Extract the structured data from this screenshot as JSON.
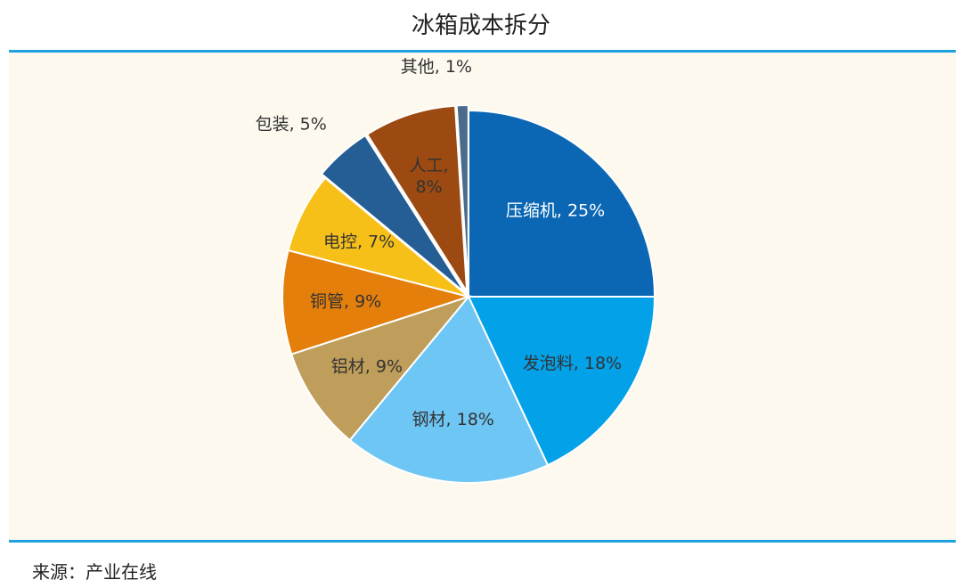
{
  "title": "冰箱成本拆分",
  "source": "来源：产业在线",
  "colors": {
    "rule": "#1fa0e0",
    "background": "#fdf9ee",
    "separator": "#ffffff"
  },
  "chart_data": {
    "type": "pie",
    "title": "冰箱成本拆分",
    "start": "12 o'clock, clockwise",
    "slices": [
      {
        "name": "压缩机",
        "value": 25,
        "color": "#0b67b4",
        "label_text": "压缩机, 25%",
        "label_color": "#ffffff",
        "label_position": "inside"
      },
      {
        "name": "发泡料",
        "value": 18,
        "color": "#03a1e8",
        "label_text": "发泡料, 18%",
        "label_color": "#333333",
        "label_position": "inside"
      },
      {
        "name": "钢材",
        "value": 18,
        "color": "#6ec6f4",
        "label_text": "钢材, 18%",
        "label_color": "#333333",
        "label_position": "inside"
      },
      {
        "name": "铝材",
        "value": 9,
        "color": "#bf9e5b",
        "label_text": "铝材, 9%",
        "label_color": "#333333",
        "label_position": "inside"
      },
      {
        "name": "铜管",
        "value": 9,
        "color": "#e57f0c",
        "label_text": "铜管, 9%",
        "label_color": "#333333",
        "label_position": "inside"
      },
      {
        "name": "电控",
        "value": 7,
        "color": "#f7c019",
        "label_text": "电控, 7%",
        "label_color": "#333333",
        "label_position": "inside"
      },
      {
        "name": "包装",
        "value": 5,
        "color": "#245e95",
        "label_text": "包装, 5%",
        "label_color": "#333333",
        "label_position": "outside",
        "exploded": true
      },
      {
        "name": "人工",
        "value": 8,
        "color": "#9c4a11",
        "label_text": "人工, 8%",
        "label_lines": [
          "人工,",
          "8%"
        ],
        "label_color": "#333333",
        "label_position": "inside",
        "exploded": true
      },
      {
        "name": "其他",
        "value": 1,
        "color": "#4a6b8a",
        "label_text": "其他, 1%",
        "label_color": "#333333",
        "label_position": "outside",
        "exploded": true
      }
    ]
  }
}
